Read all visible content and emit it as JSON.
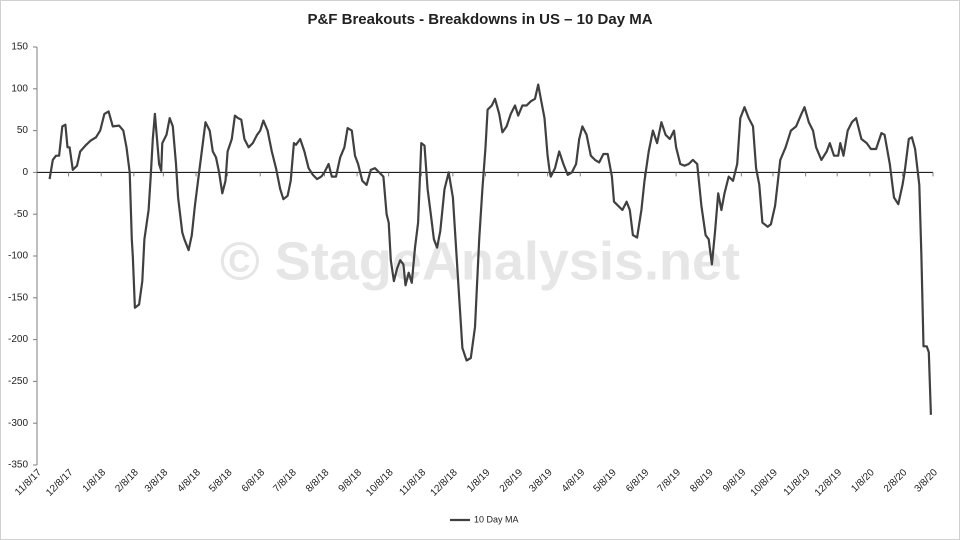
{
  "chart_data": {
    "type": "line",
    "title": "P&F Breakouts - Breakdowns in US – 10 Day MA",
    "watermark": "© StageAnalysis.net",
    "ylim": [
      -350,
      150
    ],
    "yticks": [
      150,
      100,
      50,
      0,
      -50,
      -100,
      -150,
      -200,
      -250,
      -300,
      -350
    ],
    "xlim": [
      "11/8/17",
      "3/8/20"
    ],
    "xticks": [
      "11/8/17",
      "12/8/17",
      "1/8/18",
      "2/8/18",
      "3/8/18",
      "4/8/18",
      "5/8/18",
      "6/8/18",
      "7/8/18",
      "8/8/18",
      "9/8/18",
      "10/8/18",
      "11/8/18",
      "12/8/18",
      "1/8/19",
      "2/8/19",
      "3/8/19",
      "4/8/19",
      "5/8/19",
      "6/8/19",
      "7/8/19",
      "8/8/19",
      "9/8/19",
      "10/8/19",
      "11/8/19",
      "12/8/19",
      "1/8/20",
      "2/8/20",
      "3/8/20"
    ],
    "grid": false,
    "legend": "bottom",
    "x": [
      "11/20/17",
      "11/23/17",
      "11/26/17",
      "11/29/17",
      "12/2/17",
      "12/5/17",
      "12/7/17",
      "12/9/17",
      "12/12/17",
      "12/16/17",
      "12/19/17",
      "12/24/17",
      "12/29/17",
      "1/3/18",
      "1/7/18",
      "1/11/18",
      "1/15/18",
      "1/19/18",
      "1/25/18",
      "1/29/18",
      "2/1/18",
      "2/4/18",
      "2/6/18",
      "2/7/18",
      "2/9/18",
      "2/13/18",
      "2/16/18",
      "2/18/18",
      "2/22/18",
      "2/24/18",
      "2/26/18",
      "2/28/18",
      "3/2/18",
      "3/4/18",
      "3/6/18",
      "3/7/18",
      "3/11/18",
      "3/14/18",
      "3/17/18",
      "3/20/18",
      "3/22/18",
      "3/26/18",
      "3/28/18",
      "4/1/18",
      "4/4/18",
      "4/7/18",
      "4/11/18",
      "4/14/18",
      "4/17/18",
      "4/21/18",
      "4/24/18",
      "4/27/18",
      "4/30/18",
      "5/3/18",
      "5/6/18",
      "5/8/18",
      "5/12/18",
      "5/15/18",
      "5/18/18",
      "5/21/18",
      "5/24/18",
      "5/28/18",
      "6/1/18",
      "6/5/18",
      "6/8/18",
      "6/11/18",
      "6/15/18",
      "6/19/18",
      "6/23/18",
      "6/27/18",
      "6/30/18",
      "7/4/18",
      "7/7/18",
      "7/10/18",
      "7/12/18",
      "7/16/18",
      "7/20/18",
      "7/24/18",
      "7/28/18",
      "8/1/18",
      "8/5/18",
      "8/8/18",
      "8/12/18",
      "8/15/18",
      "8/19/18",
      "8/23/18",
      "8/27/18",
      "8/30/18",
      "9/3/18",
      "9/6/18",
      "9/9/18",
      "9/13/18",
      "9/17/18",
      "9/21/18",
      "9/25/18",
      "9/29/18",
      "10/3/18",
      "10/6/18",
      "10/8/18",
      "10/10/18",
      "10/13/18",
      "10/16/18",
      "10/19/18",
      "10/22/18",
      "10/24/18",
      "10/27/18",
      "10/30/18",
      "11/2/18",
      "11/5/18",
      "11/8/18",
      "11/11/18",
      "11/14/18",
      "11/17/18",
      "11/20/18",
      "11/23/18",
      "11/26/18",
      "11/30/18",
      "12/4/18",
      "12/8/18",
      "12/10/18",
      "12/14/18",
      "12/17/18",
      "12/21/18",
      "12/25/18",
      "12/29/18",
      "1/2/19",
      "1/5/19",
      "1/8/19",
      "1/10/19",
      "1/14/19",
      "1/17/19",
      "1/21/19",
      "1/24/19",
      "1/28/19",
      "2/1/19",
      "2/5/19",
      "2/8/19",
      "2/12/19",
      "2/16/19",
      "2/20/19",
      "2/24/19",
      "2/27/19",
      "3/2/19",
      "3/5/19",
      "3/8/19",
      "3/10/19",
      "3/11/19",
      "3/15/19",
      "3/19/19",
      "3/23/19",
      "3/27/19",
      "3/31/19",
      "4/4/19",
      "4/7/19",
      "4/10/19",
      "4/14/19",
      "4/18/19",
      "4/22/19",
      "4/26/19",
      "4/30/19",
      "5/4/19",
      "5/8/19",
      "5/10/19",
      "5/14/19",
      "5/18/19",
      "5/22/19",
      "5/25/19",
      "5/28/19",
      "6/1/19",
      "6/5/19",
      "6/8/19",
      "6/12/19",
      "6/16/19",
      "6/20/19",
      "6/24/19",
      "6/28/19",
      "7/2/19",
      "7/6/19",
      "7/8/19",
      "7/12/19",
      "7/16/19",
      "7/20/19",
      "7/24/19",
      "7/28/19",
      "8/1/19",
      "8/5/19",
      "8/8/19",
      "8/11/19",
      "8/14/19",
      "8/17/19",
      "8/20/19",
      "8/23/19",
      "8/27/19",
      "8/31/19",
      "9/4/19",
      "9/7/19",
      "9/11/19",
      "9/15/19",
      "9/19/19",
      "9/22/19",
      "9/25/19",
      "9/28/19",
      "10/3/19",
      "10/6/19",
      "10/10/19",
      "10/15/19",
      "10/20/19",
      "10/25/19",
      "10/30/19",
      "11/4/19",
      "11/7/19",
      "11/11/19",
      "11/15/19",
      "11/18/19",
      "11/23/19",
      "11/28/19",
      "12/1/19",
      "12/5/19",
      "12/9/19",
      "12/11/19",
      "12/14/19",
      "12/18/19",
      "12/22/19",
      "12/26/19",
      "12/31/19",
      "1/5/20",
      "1/9/20",
      "1/14/20",
      "1/19/20",
      "1/22/20",
      "1/27/20",
      "1/31/20",
      "2/4/20",
      "2/8/20",
      "2/10/20",
      "2/14/20",
      "2/17/20",
      "2/20/20",
      "2/24/20",
      "2/26/20",
      "2/28/20",
      "3/2/20",
      "3/4/20",
      "3/6/20"
    ],
    "series": [
      {
        "name": "10 Day MA",
        "color": "#404040",
        "values": [
          -8,
          15,
          20,
          20,
          55,
          57,
          30,
          30,
          3,
          8,
          25,
          32,
          38,
          42,
          50,
          70,
          73,
          55,
          56,
          50,
          30,
          0,
          -80,
          -100,
          -162,
          -158,
          -130,
          -80,
          -45,
          -5,
          40,
          70,
          40,
          10,
          2,
          35,
          45,
          65,
          55,
          10,
          -30,
          -72,
          -80,
          -93,
          -75,
          -40,
          0,
          30,
          60,
          50,
          25,
          18,
          0,
          -25,
          -10,
          25,
          40,
          68,
          65,
          63,
          40,
          30,
          35,
          45,
          50,
          62,
          50,
          25,
          5,
          -20,
          -32,
          -28,
          -10,
          35,
          33,
          40,
          25,
          5,
          -3,
          -8,
          -5,
          0,
          10,
          -5,
          -5,
          18,
          30,
          53,
          50,
          20,
          10,
          -10,
          -15,
          3,
          5,
          0,
          -5,
          -50,
          -60,
          -105,
          -130,
          -115,
          -105,
          -110,
          -135,
          -120,
          -132,
          -90,
          -60,
          35,
          32,
          -20,
          -50,
          -80,
          -90,
          -70,
          -20,
          0,
          -30,
          -70,
          -150,
          -210,
          -225,
          -222,
          -185,
          -80,
          -20,
          30,
          75,
          80,
          88,
          70,
          48,
          55,
          70,
          80,
          68,
          80,
          80,
          85,
          88,
          105,
          85,
          65,
          20,
          0,
          -5,
          5,
          25,
          10,
          -3,
          0,
          10,
          40,
          55,
          45,
          20,
          15,
          12,
          22,
          22,
          -5,
          -35,
          -40,
          -45,
          -35,
          -45,
          -75,
          -78,
          -45,
          -10,
          25,
          50,
          35,
          60,
          45,
          40,
          50,
          30,
          10,
          8,
          10,
          15,
          10,
          -40,
          -75,
          -80,
          -110,
          -70,
          -25,
          -45,
          -25,
          -5,
          -10,
          10,
          65,
          78,
          65,
          55,
          5,
          -15,
          -60,
          -65,
          -62,
          -40,
          15,
          30,
          50,
          55,
          70,
          78,
          60,
          50,
          30,
          15,
          25,
          35,
          20,
          20,
          35,
          20,
          50,
          60,
          65,
          40,
          35,
          28,
          28,
          47,
          45,
          10,
          -30,
          -38,
          -15,
          0,
          40,
          42,
          28,
          -15,
          -100,
          -208,
          -208,
          -215,
          -290
        ]
      }
    ]
  }
}
